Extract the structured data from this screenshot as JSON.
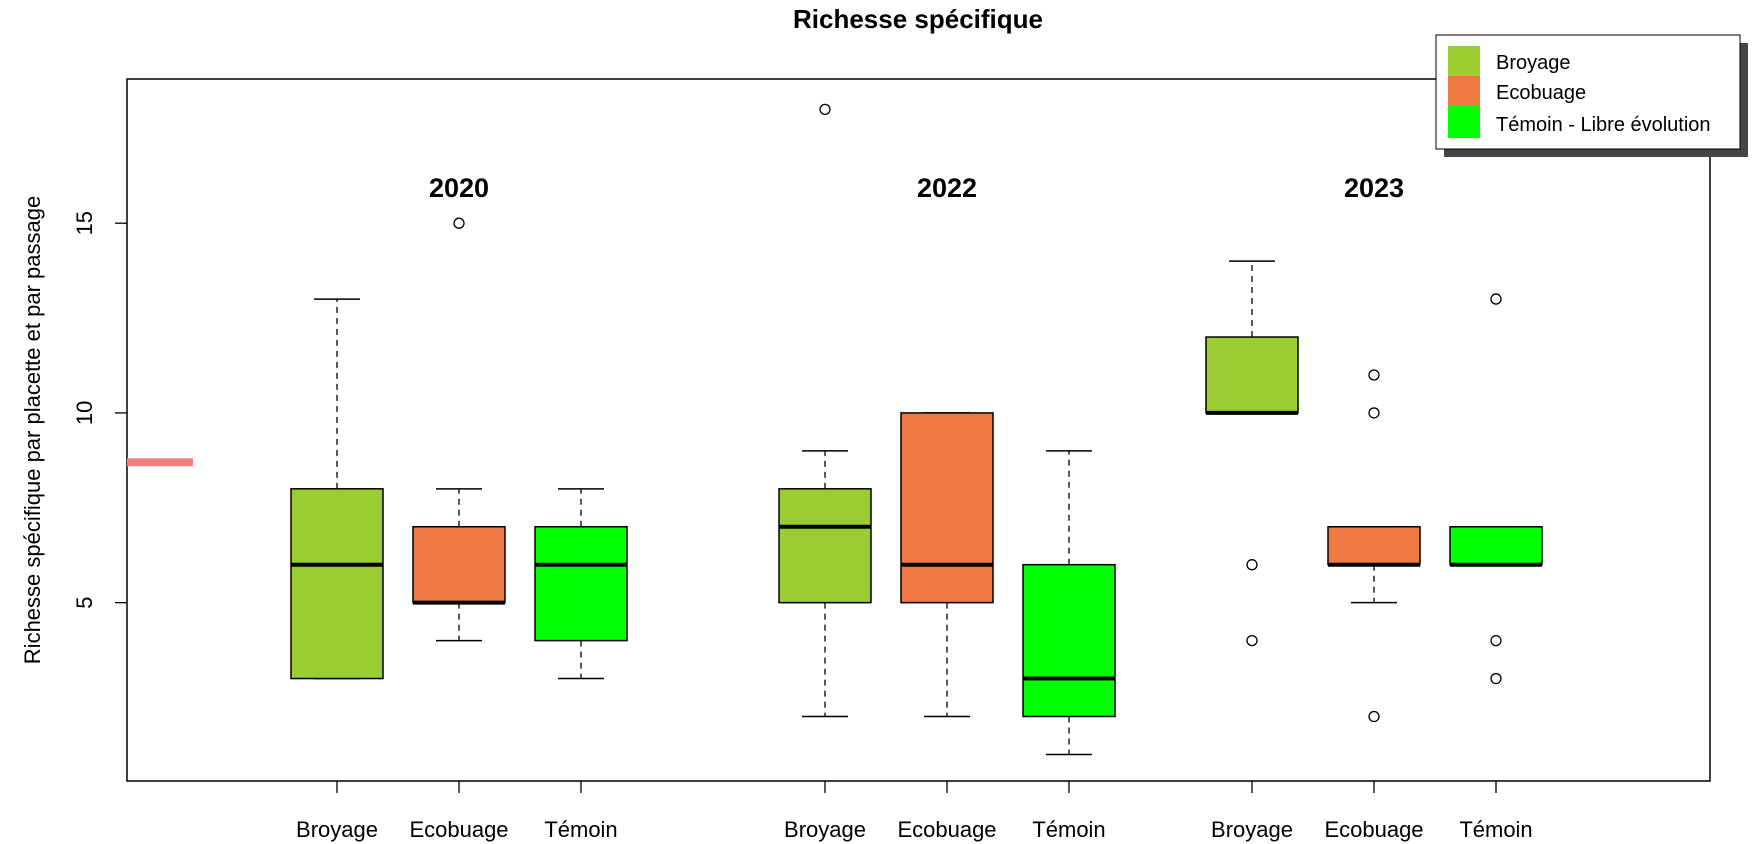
{
  "chart_data": {
    "type": "boxplot",
    "title": "Richesse spécifique",
    "ylabel": "Richesse spécifique par placette et par passage",
    "xlabel": "",
    "ylim": [
      0.3,
      18.8
    ],
    "yticks": [
      5,
      10,
      15
    ],
    "grid": false,
    "legend_position": "top-right",
    "colors": {
      "Broyage": "#9ACD32",
      "Ecobuage": "#EE7942",
      "Témoin - Libre évolution": "#00FF00",
      "reference_mark": "#F08080"
    },
    "reference_mark_value": 8.7,
    "legend": [
      "Broyage",
      "Ecobuage",
      "Témoin - Libre évolution"
    ],
    "groups": [
      {
        "year": "2020",
        "boxes": [
          {
            "label": "Broyage",
            "series": "Broyage",
            "min": 3,
            "q1": 3,
            "median": 6,
            "q3": 8,
            "max": 13,
            "outliers": []
          },
          {
            "label": "Ecobuage",
            "series": "Ecobuage",
            "min": 4,
            "q1": 5,
            "median": 5,
            "q3": 7,
            "max": 8,
            "outliers": [
              15
            ]
          },
          {
            "label": "Témoin",
            "series": "Témoin - Libre évolution",
            "min": 3,
            "q1": 4,
            "median": 6,
            "q3": 7,
            "max": 8,
            "outliers": []
          }
        ]
      },
      {
        "year": "2022",
        "boxes": [
          {
            "label": "Broyage",
            "series": "Broyage",
            "min": 2,
            "q1": 5,
            "median": 7,
            "q3": 8,
            "max": 9,
            "outliers": [
              18
            ]
          },
          {
            "label": "Ecobuage",
            "series": "Ecobuage",
            "min": 2,
            "q1": 5,
            "median": 6,
            "q3": 10,
            "max": 10,
            "outliers": []
          },
          {
            "label": "Témoin",
            "series": "Témoin - Libre évolution",
            "min": 1,
            "q1": 2,
            "median": 3,
            "q3": 6,
            "max": 9,
            "outliers": []
          }
        ]
      },
      {
        "year": "2023",
        "boxes": [
          {
            "label": "Broyage",
            "series": "Broyage",
            "min": 10,
            "q1": 10,
            "median": 10,
            "q3": 12,
            "max": 14,
            "outliers": [
              6,
              4
            ]
          },
          {
            "label": "Ecobuage",
            "series": "Ecobuage",
            "min": 5,
            "q1": 6,
            "median": 6,
            "q3": 7,
            "max": 7,
            "outliers": [
              11,
              10,
              2
            ]
          },
          {
            "label": "Témoin",
            "series": "Témoin - Libre évolution",
            "min": 6,
            "q1": 6,
            "median": 6,
            "q3": 7,
            "max": 7,
            "outliers": [
              13,
              4,
              3
            ]
          }
        ]
      }
    ]
  }
}
